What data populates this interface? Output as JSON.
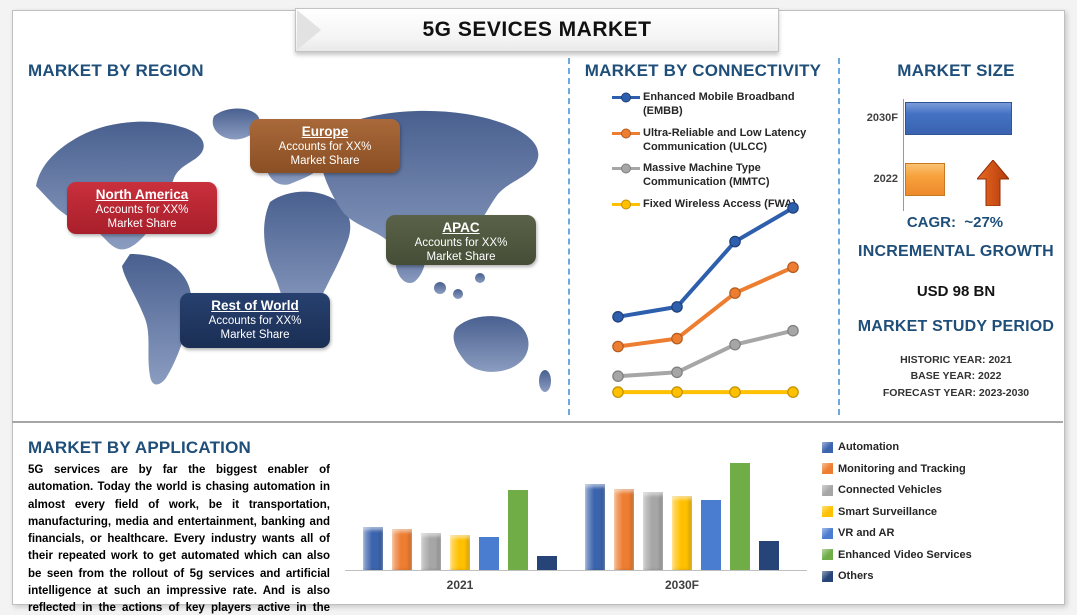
{
  "page": {
    "title": "5G SEVICES MARKET"
  },
  "region_section": {
    "heading": "MARKET BY REGION",
    "callouts": [
      {
        "id": "north-america",
        "name": "North America",
        "line1": "Accounts for XX%",
        "line2": "Market Share",
        "color": "#C9303C",
        "color_dark": "#A81F2B"
      },
      {
        "id": "europe",
        "name": "Europe",
        "line1": "Accounts for XX%",
        "line2": "Market Share",
        "color": "#A9693A",
        "color_dark": "#8A4F24"
      },
      {
        "id": "apac",
        "name": "APAC",
        "line1": "Accounts for XX%",
        "line2": "Market Share",
        "color": "#5A6349",
        "color_dark": "#454D36"
      },
      {
        "id": "rest-of-world",
        "name": "Rest of World",
        "line1": "Accounts for XX%",
        "line2": "Market Share",
        "color": "#27406F",
        "color_dark": "#1B2F54"
      }
    ]
  },
  "connectivity_section": {
    "heading": "MARKET BY CONNECTIVITY",
    "legend": [
      {
        "label": "Enhanced Mobile Broadband (EMBB)",
        "color": "#2E5FAC",
        "marker_stroke": "#1F3F7A"
      },
      {
        "label": "Ultra-Reliable and Low Latency Communication (ULCC)",
        "color": "#ED7D31",
        "marker_stroke": "#B35B1E"
      },
      {
        "label": "Massive Machine Type Communication (MMTC)",
        "color": "#A6A6A6",
        "marker_stroke": "#7F7F7F"
      },
      {
        "label": "Fixed Wireless Access (FWA)",
        "color": "#FFC000",
        "marker_stroke": "#BF9000"
      }
    ]
  },
  "market_size_section": {
    "heading": "MARKET SIZE",
    "cagr_label": "CAGR:",
    "cagr_value": "~27%",
    "incremental_heading": "INCREMENTAL GROWTH",
    "incremental_value": "USD 98 BN",
    "study_heading": "MARKET STUDY PERIOD",
    "study_lines": [
      "HISTORIC YEAR: 2021",
      "BASE YEAR: 2022",
      "FORECAST YEAR: 2023-2030"
    ]
  },
  "application_section": {
    "heading": "MARKET BY APPLICATION",
    "paragraph": "5G services are by far the biggest enabler of automation. Today the world is chasing automation in almost every field of work, be it transportation, manufacturing, media and entertainment, banking and financials, or healthcare. Every industry wants all of their repeated work to get automated which can also be seen from the rollout of 5g services and artificial intelligence at such an impressive rate. And is also reflected in the actions of key players active in the industry."
  },
  "chart_data": [
    {
      "id": "connectivity-line-chart",
      "type": "line",
      "title": "MARKET BY CONNECTIVITY",
      "x": [
        1,
        2,
        3,
        4
      ],
      "x_tick_labels": [],
      "axes_visible": false,
      "grid": false,
      "legend_position": "top",
      "ylim": [
        0,
        100
      ],
      "series": [
        {
          "name": "Enhanced Mobile Broadband (EMBB)",
          "color": "#2E5FAC",
          "marker_stroke": "#1F3F7A",
          "values": [
            42,
            47,
            80,
            97
          ]
        },
        {
          "name": "Ultra-Reliable and Low Latency Communication (ULCC)",
          "color": "#ED7D31",
          "marker_stroke": "#B35B1E",
          "values": [
            27,
            31,
            54,
            67
          ]
        },
        {
          "name": "Massive Machine Type Communication (MMTC)",
          "color": "#A6A6A6",
          "marker_stroke": "#7F7F7F",
          "values": [
            12,
            14,
            28,
            35
          ]
        },
        {
          "name": "Fixed Wireless Access (FWA)",
          "color": "#FFC000",
          "marker_stroke": "#BF9000",
          "values": [
            4,
            4,
            4,
            4
          ]
        }
      ]
    },
    {
      "id": "market-size-bar-chart",
      "type": "bar",
      "orientation": "horizontal",
      "title": "MARKET SIZE",
      "categories": [
        "2030F",
        "2022"
      ],
      "values": [
        100,
        37
      ],
      "colors": [
        "#4472C4",
        "#F7A13C"
      ],
      "annotation": "CAGR: ~27%",
      "xlim": [
        0,
        100
      ],
      "grid": false
    },
    {
      "id": "application-bar-chart",
      "type": "bar",
      "title": "MARKET BY APPLICATION",
      "categories": [
        "2021",
        "2030F"
      ],
      "ylim": [
        0,
        110
      ],
      "grid": false,
      "legend_position": "right",
      "series": [
        {
          "name": "Automation",
          "color": "#3C64AE",
          "style": "bevel",
          "values": [
            40,
            80
          ]
        },
        {
          "name": "Monitoring and Tracking",
          "color": "#ED7D31",
          "style": "bevel",
          "values": [
            38,
            76
          ]
        },
        {
          "name": "Connected Vehicles",
          "color": "#A6A6A6",
          "style": "bevel",
          "values": [
            35,
            73
          ]
        },
        {
          "name": "Smart Surveillance",
          "color": "#FFC000",
          "style": "bevel",
          "values": [
            33,
            69
          ]
        },
        {
          "name": "VR and AR",
          "color": "#4A7CCF",
          "style": "flat",
          "values": [
            31,
            65
          ]
        },
        {
          "name": "Enhanced Video Services",
          "color": "#70AD47",
          "style": "flat",
          "values": [
            75,
            100
          ]
        },
        {
          "name": "Others",
          "color": "#264478",
          "style": "flat",
          "values": [
            13,
            27
          ]
        }
      ]
    }
  ]
}
